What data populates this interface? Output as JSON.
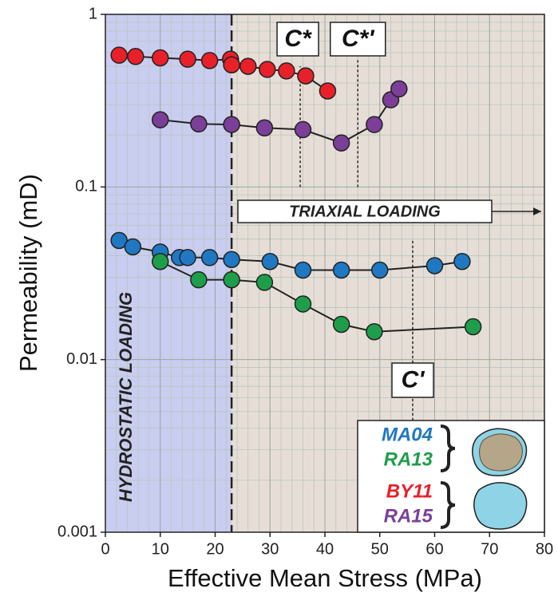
{
  "chart_data": {
    "type": "line",
    "xlabel": "Effective Mean Stress (MPa)",
    "ylabel": "Permeability (mD)",
    "xlim": [
      0,
      80
    ],
    "xticks": [
      0,
      10,
      20,
      30,
      40,
      50,
      60,
      70,
      80
    ],
    "ylim": [
      0.001,
      1
    ],
    "yticks": [
      0.001,
      0.01,
      0.1,
      1
    ],
    "log_y": true,
    "grid": true,
    "x_minor_step": 2,
    "hydrostatic_end": 23,
    "hydrostatic_label": "HYDROSTATIC LOADING",
    "triaxial_label": "TRIAXIAL LOADING",
    "markers": [
      {
        "label": "C*",
        "x": 35.5,
        "y": [
          0.1,
          0.5
        ]
      },
      {
        "label": "C*'",
        "x": 46,
        "y": [
          0.1,
          0.55
        ]
      },
      {
        "label": "C'",
        "x": 56,
        "y": [
          0.0022,
          0.05
        ]
      }
    ],
    "series": [
      {
        "name": "BY11",
        "color": "#e8202a",
        "x": [
          2.5,
          5.5,
          10,
          15,
          19,
          22.8,
          23,
          26,
          29.5,
          33,
          36.5,
          40.5
        ],
        "values": [
          0.58,
          0.57,
          0.56,
          0.55,
          0.54,
          0.55,
          0.51,
          0.5,
          0.48,
          0.47,
          0.44,
          0.36
        ]
      },
      {
        "name": "RA15",
        "color": "#7b3f98",
        "x": [
          10,
          17,
          23,
          29,
          36,
          43,
          49,
          52,
          53.5
        ],
        "values": [
          0.245,
          0.232,
          0.23,
          0.22,
          0.215,
          0.18,
          0.23,
          0.32,
          0.37
        ]
      },
      {
        "name": "MA04",
        "color": "#1f78c1",
        "x": [
          2.5,
          5,
          10,
          13.5,
          15,
          19,
          23,
          30,
          36,
          43,
          50,
          60,
          65
        ],
        "values": [
          0.049,
          0.045,
          0.042,
          0.039,
          0.039,
          0.039,
          0.038,
          0.037,
          0.033,
          0.033,
          0.033,
          0.035,
          0.037
        ]
      },
      {
        "name": "RA13",
        "color": "#1e9e4a",
        "x": [
          10,
          17,
          23,
          29,
          36,
          43,
          49,
          67
        ],
        "values": [
          0.037,
          0.029,
          0.029,
          0.028,
          0.021,
          0.016,
          0.0145,
          0.0155
        ]
      }
    ],
    "legend_order": [
      2,
      3,
      0,
      1
    ]
  }
}
